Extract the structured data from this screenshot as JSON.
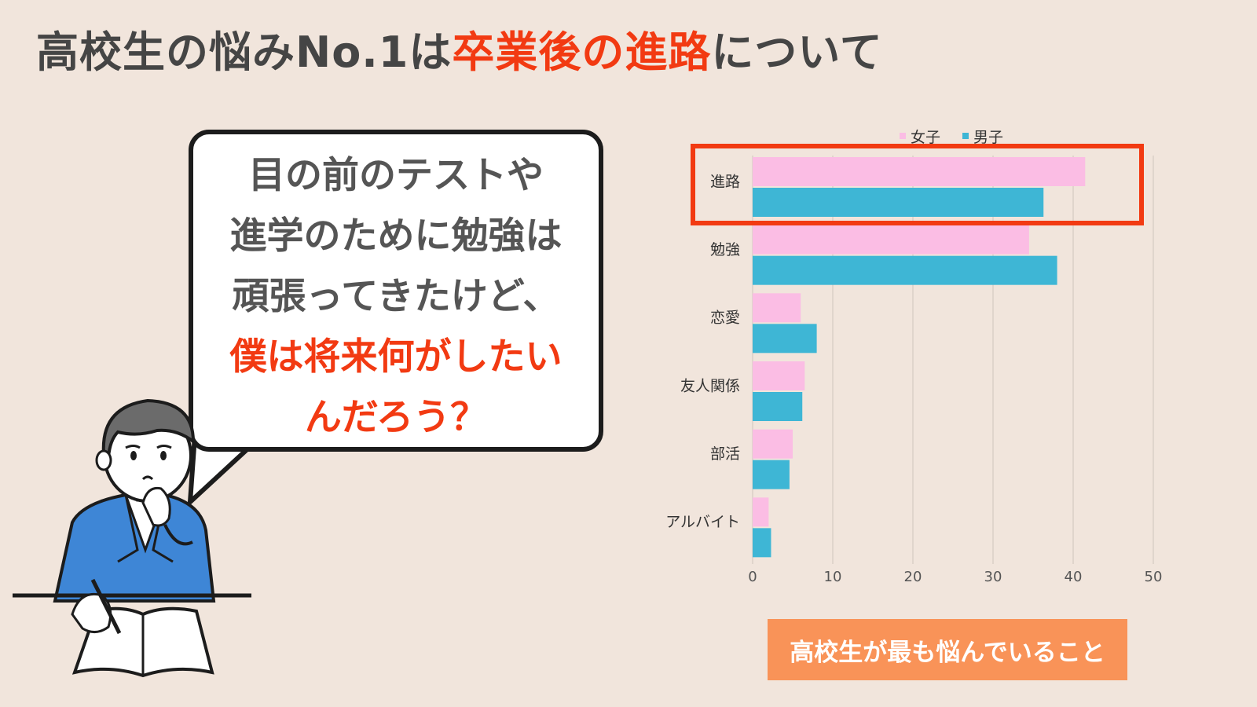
{
  "heading": {
    "prefix": "高校生の悩みNo.1は",
    "highlight": "卒業後の進路",
    "suffix": "について"
  },
  "bubble": {
    "line1": "目の前のテストや",
    "line2": "進学のために勉強は",
    "line3": "頑張ってきたけど、",
    "red1": "僕は将来何がしたい",
    "red2": "んだろう？"
  },
  "badge": "高校生が最も悩んでいること",
  "colors": {
    "background": "#f1e5dc",
    "girls": "#fbbde4",
    "boys": "#3eb6d5",
    "accent": "#f23a12",
    "badge": "#f99358"
  },
  "chart_data": {
    "type": "bar",
    "orientation": "horizontal",
    "categories": [
      "進路",
      "勉強",
      "恋愛",
      "友人関係",
      "部活",
      "アルバイト"
    ],
    "series": [
      {
        "name": "女子",
        "values": [
          41.5,
          34.5,
          6,
          6.5,
          5,
          2
        ]
      },
      {
        "name": "男子",
        "values": [
          36.3,
          38,
          8,
          6.2,
          4.6,
          2.3
        ]
      }
    ],
    "xticks": [
      "0",
      "10",
      "20",
      "30",
      "40",
      "50"
    ],
    "xlim": [
      0,
      50
    ],
    "grid": true,
    "legend": "top",
    "highlighted_category": "進路"
  }
}
